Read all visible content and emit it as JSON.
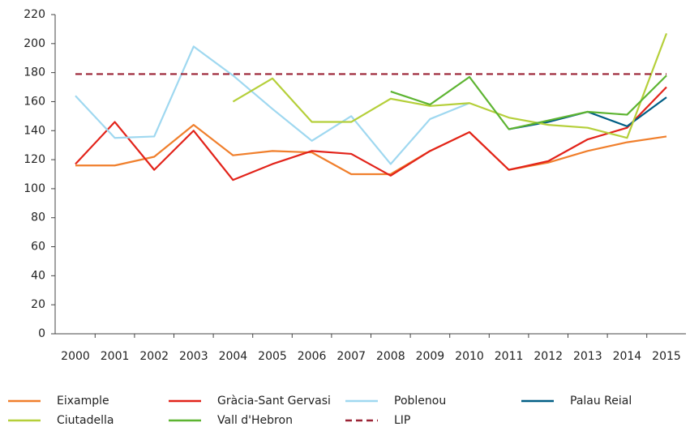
{
  "chart_data": {
    "type": "line",
    "categories": [
      "2000",
      "2001",
      "2002",
      "2003",
      "2004",
      "2005",
      "2006",
      "2007",
      "2008",
      "2009",
      "2010",
      "2011",
      "2012",
      "2013",
      "2014",
      "2015"
    ],
    "ylim": [
      0,
      220
    ],
    "yticks": [
      0,
      20,
      40,
      60,
      80,
      100,
      120,
      140,
      160,
      180,
      200,
      220
    ],
    "series": [
      {
        "name": "Eixample",
        "color": "#f07f2c",
        "values": [
          116,
          116,
          122,
          144,
          123,
          126,
          125,
          110,
          110,
          126,
          139,
          113,
          118,
          126,
          132,
          136
        ]
      },
      {
        "name": "Gràcia-Sant Gervasi",
        "color": "#e2231a",
        "values": [
          117,
          146,
          113,
          140,
          106,
          117,
          126,
          124,
          109,
          126,
          139,
          113,
          119,
          134,
          142,
          170
        ]
      },
      {
        "name": "Poblenou",
        "color": "#9fd8f0",
        "values": [
          164,
          135,
          136,
          198,
          178,
          155,
          133,
          150,
          117,
          148,
          159,
          null,
          null,
          null,
          null,
          null
        ]
      },
      {
        "name": "Palau Reial",
        "color": "#005e85",
        "values": [
          null,
          null,
          null,
          null,
          null,
          null,
          null,
          null,
          null,
          null,
          null,
          141,
          146,
          153,
          143,
          163
        ]
      },
      {
        "name": "Ciutadella",
        "color": "#b5cf3a",
        "values": [
          null,
          null,
          null,
          null,
          160,
          176,
          146,
          146,
          162,
          157,
          159,
          149,
          144,
          142,
          135,
          207
        ]
      },
      {
        "name": "Vall d'Hebron",
        "color": "#5db431",
        "values": [
          null,
          null,
          null,
          null,
          null,
          null,
          null,
          null,
          167,
          158,
          177,
          141,
          147,
          153,
          151,
          178
        ]
      },
      {
        "name": "LIP",
        "color": "#9b2335",
        "dashed": true,
        "values": [
          179,
          179,
          179,
          179,
          179,
          179,
          179,
          179,
          179,
          179,
          179,
          179,
          179,
          179,
          179,
          179
        ]
      }
    ]
  }
}
